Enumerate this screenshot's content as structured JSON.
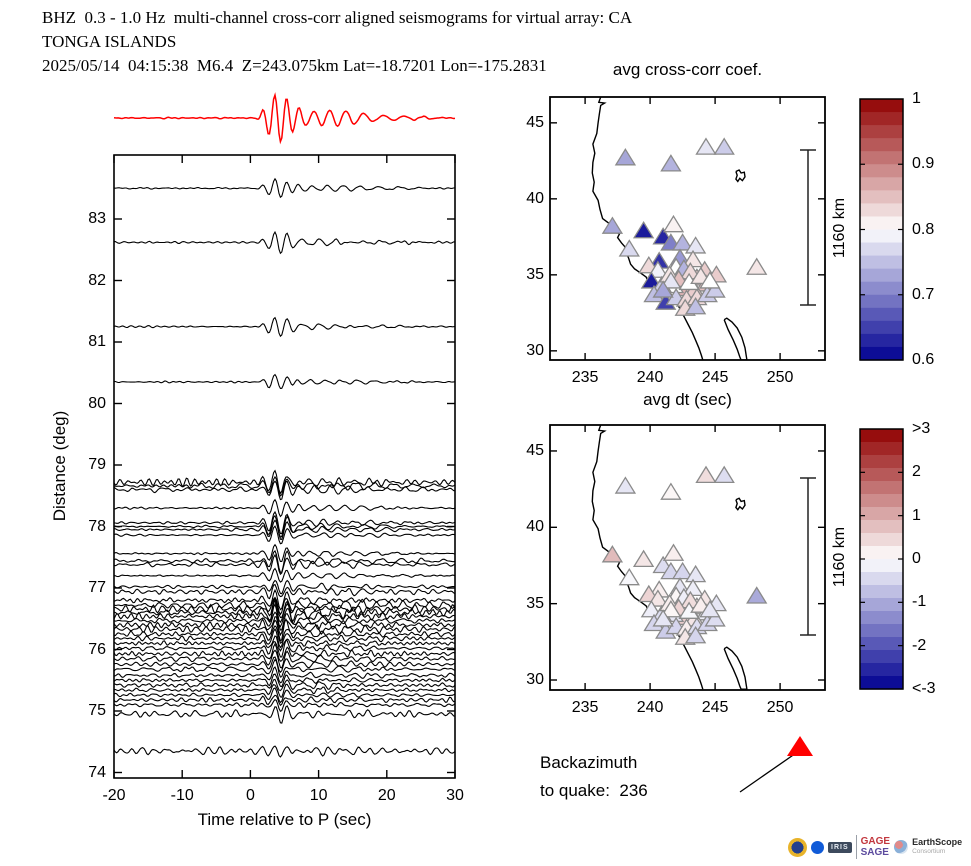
{
  "header": {
    "line1": "BHZ  0.3 - 1.0 Hz  multi-channel cross-corr aligned seismograms for virtual array: CA",
    "line2": "TONGA ISLANDS",
    "line3": "2025/05/14  04:15:38  M6.4  Z=243.075km Lat=-18.7201 Lon=-175.2831"
  },
  "seis": {
    "xlabel": "Time relative to P (sec)",
    "ylabel": "Distance (deg)"
  },
  "maps": {
    "title_top": "avg cross-corr coef.",
    "title_bottom": "avg dt (sec)",
    "scalebar": "1160 km"
  },
  "backazimuth": {
    "line1": "Backazimuth",
    "line2": "to quake:  236",
    "value": 236
  },
  "logos": {
    "iris": "IRIS",
    "gage": "GAGE",
    "sage": "SAGE",
    "earthscope": "EarthScope",
    "consortium": "Consortium"
  },
  "colors": {
    "stack_trace": "#ff0000",
    "trace": "#000000",
    "quake_marker": "#ff0000",
    "triangle_edge": "#8a8a8a",
    "cmap_low": "#000090",
    "cmap_mid": "#ffffff",
    "cmap_high": "#900000"
  },
  "chart_data": [
    {
      "type": "line",
      "panel": "record-section",
      "xlabel": "Time relative to P (sec)",
      "ylabel": "Distance (deg)",
      "xlim": [
        -20,
        30
      ],
      "ylim": [
        73.9,
        84.1
      ],
      "xticks": [
        -20,
        -10,
        0,
        10,
        20,
        30
      ],
      "yticks": [
        83,
        82,
        81,
        80,
        79,
        78,
        77,
        76,
        75,
        74
      ],
      "stack": {
        "color": "#ff0000",
        "rel_amplitude": 26,
        "rel_noise": 0.6
      },
      "trace_fields": [
        "distance_deg",
        "rel_amplitude",
        "rel_noise"
      ],
      "traces": [
        [
          83.5,
          10,
          0.7
        ],
        [
          82.62,
          10,
          0.9
        ],
        [
          81.25,
          9,
          0.7
        ],
        [
          80.35,
          8,
          0.7
        ],
        [
          78.72,
          11,
          2.8
        ],
        [
          78.66,
          10,
          2.4
        ],
        [
          78.6,
          10,
          2.1
        ],
        [
          78.3,
          9,
          0.8
        ],
        [
          78.06,
          10,
          1.0
        ],
        [
          78.0,
          11,
          0.9
        ],
        [
          77.95,
          10,
          1.1
        ],
        [
          77.86,
          9,
          1.0
        ],
        [
          77.56,
          9,
          0.9
        ],
        [
          77.44,
          10,
          1.6
        ],
        [
          77.38,
          10,
          1.8
        ],
        [
          77.2,
          8,
          0.7
        ],
        [
          77.02,
          7,
          1.2
        ],
        [
          76.94,
          8,
          2.6
        ],
        [
          76.8,
          9,
          2.0
        ],
        [
          76.72,
          10,
          2.8
        ],
        [
          76.66,
          10,
          3.0
        ],
        [
          76.6,
          11,
          2.6
        ],
        [
          76.54,
          10,
          2.4
        ],
        [
          76.47,
          9,
          2.2
        ],
        [
          76.4,
          9,
          2.0
        ],
        [
          76.33,
          9,
          2.4
        ],
        [
          76.25,
          8,
          2.0
        ],
        [
          76.18,
          9,
          1.8
        ],
        [
          76.1,
          8,
          1.6
        ],
        [
          76.02,
          8,
          2.2
        ],
        [
          75.93,
          8,
          2.4
        ],
        [
          75.85,
          8,
          2.0
        ],
        [
          75.76,
          7,
          1.8
        ],
        [
          75.68,
          7,
          2.2
        ],
        [
          75.58,
          7,
          1.6
        ],
        [
          75.5,
          7,
          1.4
        ],
        [
          75.42,
          6,
          1.8
        ],
        [
          75.34,
          6,
          1.6
        ],
        [
          75.26,
          6,
          1.4
        ],
        [
          75.18,
          6,
          1.8
        ],
        [
          75.1,
          6,
          1.6
        ],
        [
          74.95,
          7,
          3.2
        ],
        [
          74.35,
          5,
          3.0
        ]
      ]
    },
    {
      "type": "scatter",
      "panel": "map-cc",
      "title": "avg cross-corr coef.",
      "xlim": [
        232.3,
        253.5
      ],
      "ylim": [
        29.4,
        46.7
      ],
      "xticks": [
        235,
        240,
        245,
        250
      ],
      "yticks": [
        45,
        40,
        35,
        30
      ],
      "scale_bar": "1160 km",
      "colorbar": {
        "ticks": [
          "1",
          "0.9",
          "0.8",
          "0.7",
          "0.6"
        ],
        "vmin": 0.6,
        "vmax": 1
      },
      "station_fields": [
        "lon_deg_e",
        "lat_deg_n",
        "cc",
        "dt_sec"
      ],
      "stations": [
        [
          238.1,
          42.7,
          0.73,
          -0.3
        ],
        [
          241.6,
          42.3,
          0.74,
          0.1
        ],
        [
          244.3,
          43.4,
          0.78,
          0.4
        ],
        [
          245.7,
          43.4,
          0.76,
          -0.4
        ],
        [
          237.1,
          38.2,
          0.73,
          0.8
        ],
        [
          239.5,
          37.9,
          0.62,
          0.3
        ],
        [
          241.0,
          37.5,
          0.63,
          -0.4
        ],
        [
          241.8,
          38.3,
          0.81,
          0.2
        ],
        [
          241.6,
          37.1,
          0.7,
          -0.5
        ],
        [
          242.5,
          37.1,
          0.74,
          -0.5
        ],
        [
          243.5,
          36.9,
          0.78,
          -0.3
        ],
        [
          238.4,
          36.7,
          0.77,
          -0.1
        ],
        [
          240.7,
          35.9,
          0.64,
          0.2
        ],
        [
          239.9,
          35.6,
          0.83,
          0.5
        ],
        [
          240.6,
          35.3,
          0.79,
          0.3
        ],
        [
          240.1,
          34.6,
          0.62,
          -0.2
        ],
        [
          242.3,
          36.1,
          0.72,
          -0.3
        ],
        [
          243.3,
          36.0,
          0.82,
          -0.2
        ],
        [
          244.2,
          35.3,
          0.84,
          0.3
        ],
        [
          245.1,
          35.0,
          0.84,
          -0.3
        ],
        [
          248.2,
          35.5,
          0.82,
          -1.0
        ],
        [
          242.8,
          35.0,
          0.72,
          -0.4
        ],
        [
          243.6,
          34.8,
          0.84,
          0.2
        ],
        [
          244.3,
          34.4,
          0.85,
          -0.2
        ],
        [
          242.6,
          34.1,
          0.86,
          0.6
        ],
        [
          243.4,
          34.0,
          0.84,
          0.3
        ],
        [
          241.8,
          34.3,
          0.8,
          -0.3
        ],
        [
          240.9,
          34.3,
          0.76,
          -0.4
        ],
        [
          240.3,
          33.7,
          0.75,
          -0.5
        ],
        [
          241.2,
          33.2,
          0.65,
          -0.6
        ],
        [
          242.0,
          33.5,
          0.76,
          -0.5
        ],
        [
          242.8,
          33.4,
          0.83,
          0.2
        ],
        [
          243.6,
          33.5,
          0.83,
          -0.4
        ],
        [
          244.4,
          33.7,
          0.76,
          -0.5
        ],
        [
          245.0,
          34.0,
          0.76,
          -0.4
        ],
        [
          242.7,
          32.8,
          0.83,
          0.3
        ],
        [
          243.5,
          32.9,
          0.75,
          -0.5
        ],
        [
          242.0,
          35.5,
          0.8,
          0.1
        ],
        [
          242.6,
          35.4,
          0.74,
          -0.2
        ],
        [
          243.1,
          35.2,
          0.83,
          0.4
        ],
        [
          241.5,
          35.0,
          0.82,
          0.2
        ],
        [
          242.2,
          34.7,
          0.85,
          0.5
        ],
        [
          243.0,
          34.5,
          0.8,
          -0.1
        ],
        [
          241.6,
          34.6,
          0.78,
          0.1
        ],
        [
          243.9,
          34.9,
          0.82,
          0.2
        ],
        [
          244.6,
          34.6,
          0.8,
          -0.3
        ],
        [
          241.0,
          34.0,
          0.73,
          -0.3
        ]
      ]
    },
    {
      "type": "scatter",
      "panel": "map-dt",
      "title": "avg dt (sec)",
      "xlim": [
        232.3,
        253.5
      ],
      "ylim": [
        29.4,
        46.7
      ],
      "xticks": [
        235,
        240,
        245,
        250
      ],
      "yticks": [
        45,
        40,
        35,
        30
      ],
      "scale_bar": "1160 km",
      "colorbar": {
        "ticks": [
          ">3",
          "2",
          "1",
          "0",
          "-1",
          "-2",
          "<-3"
        ],
        "vmin": -3,
        "vmax": 3
      },
      "stations_same_as": "map-cc"
    }
  ]
}
